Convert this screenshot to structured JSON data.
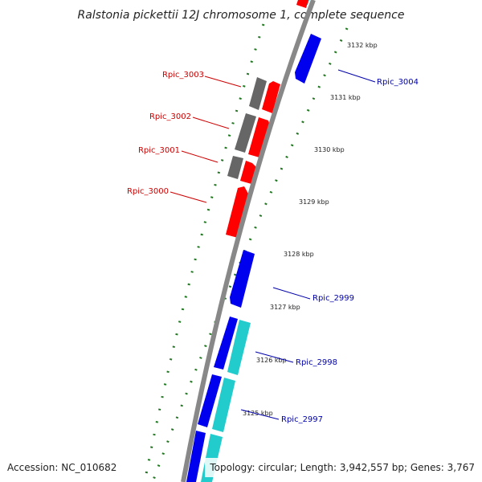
{
  "title": "Ralstonia pickettii 12J chromosome 1, complete sequence",
  "footer": {
    "accession": "Accession: NC_010682",
    "info": "Topology: circular; Length: 3,942,557 bp; Genes: 3,767"
  },
  "colors": {
    "forward_gene": "#ff0000",
    "forward_other": "#666666",
    "reverse_gene": "#0000ee",
    "reverse_other": "#22cccc",
    "backbone": "#888888",
    "tick": "#227722",
    "forward_label": "#cc0000",
    "reverse_label": "#0000aa"
  },
  "ticks": [
    "3132 kbp",
    "3131 kbp",
    "3130 kbp",
    "3129 kbp",
    "3128 kbp",
    "3127 kbp",
    "3126 kbp",
    "3125 kbp"
  ],
  "forward_labels": [
    "Rpic_3003",
    "Rpic_3002",
    "Rpic_3001",
    "Rpic_3000"
  ],
  "reverse_labels": [
    "Rpic_3004",
    "Rpic_2999",
    "Rpic_2998",
    "Rpic_2997"
  ]
}
